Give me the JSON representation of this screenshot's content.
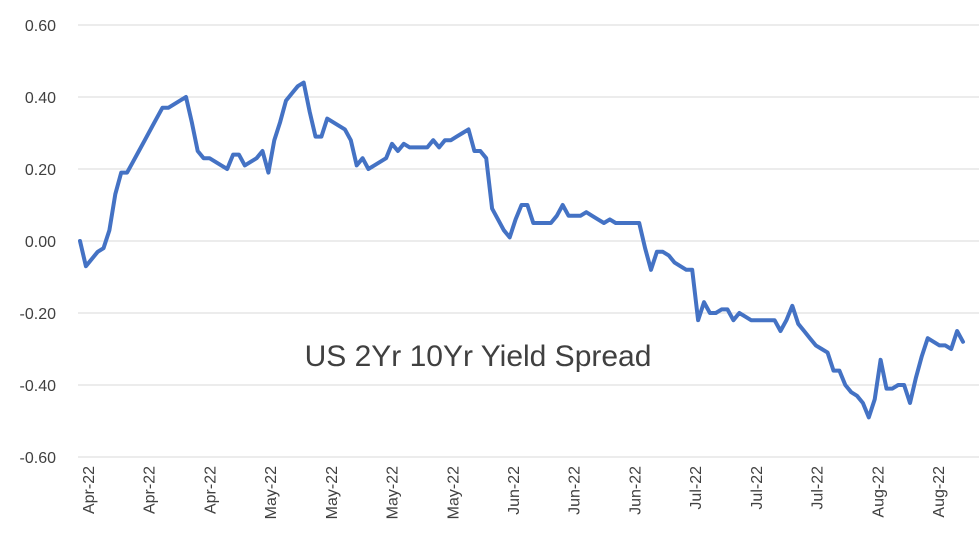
{
  "chart_data": {
    "type": "line",
    "title": "",
    "xlabel": "",
    "ylabel": "",
    "annotation": "US 2Yr 10Yr Yield Spread",
    "ylim": [
      -0.6,
      0.6
    ],
    "yticks": [
      "0.60",
      "0.40",
      "0.20",
      "0.00",
      "-0.20",
      "-0.40",
      "-0.60"
    ],
    "ytick_values": [
      0.6,
      0.4,
      0.2,
      0.0,
      -0.2,
      -0.4,
      -0.6
    ],
    "xticks": [
      "Apr-22",
      "Apr-22",
      "Apr-22",
      "May-22",
      "May-22",
      "May-22",
      "May-22",
      "Jun-22",
      "Jun-22",
      "Jun-22",
      "Jul-22",
      "Jul-22",
      "Jul-22",
      "Aug-22",
      "Aug-22"
    ],
    "grid": true,
    "legend": "none",
    "line_color": "#4472c4",
    "series": [
      {
        "values": [
          0.0,
          -0.07,
          -0.05,
          -0.03,
          -0.02,
          0.03,
          0.13,
          0.19,
          0.19,
          0.22,
          0.25,
          0.28,
          0.31,
          0.34,
          0.37,
          0.37,
          0.38,
          0.39,
          0.4,
          0.33,
          0.25,
          0.23,
          0.23,
          0.22,
          0.21,
          0.2,
          0.24,
          0.24,
          0.21,
          0.22,
          0.23,
          0.25,
          0.19,
          0.28,
          0.33,
          0.39,
          0.41,
          0.43,
          0.44,
          0.36,
          0.29,
          0.29,
          0.34,
          0.33,
          0.32,
          0.31,
          0.28,
          0.21,
          0.23,
          0.2,
          0.21,
          0.22,
          0.23,
          0.27,
          0.25,
          0.27,
          0.26,
          0.26,
          0.26,
          0.26,
          0.28,
          0.26,
          0.28,
          0.28,
          0.29,
          0.3,
          0.31,
          0.25,
          0.25,
          0.23,
          0.09,
          0.06,
          0.03,
          0.01,
          0.06,
          0.1,
          0.1,
          0.05,
          0.05,
          0.05,
          0.05,
          0.07,
          0.1,
          0.07,
          0.07,
          0.07,
          0.08,
          0.07,
          0.06,
          0.05,
          0.06,
          0.05,
          0.05,
          0.05,
          0.05,
          0.05,
          -0.02,
          -0.08,
          -0.03,
          -0.03,
          -0.04,
          -0.06,
          -0.07,
          -0.08,
          -0.08,
          -0.22,
          -0.17,
          -0.2,
          -0.2,
          -0.19,
          -0.19,
          -0.22,
          -0.2,
          -0.21,
          -0.22,
          -0.22,
          -0.22,
          -0.22,
          -0.22,
          -0.25,
          -0.22,
          -0.18,
          -0.23,
          -0.25,
          -0.27,
          -0.29,
          -0.3,
          -0.31,
          -0.36,
          -0.36,
          -0.4,
          -0.42,
          -0.43,
          -0.45,
          -0.49,
          -0.44,
          -0.33,
          -0.41,
          -0.41,
          -0.4,
          -0.4,
          -0.45,
          -0.38,
          -0.32,
          -0.27,
          -0.28,
          -0.29,
          -0.29,
          -0.3,
          -0.25,
          -0.28
        ]
      }
    ]
  }
}
